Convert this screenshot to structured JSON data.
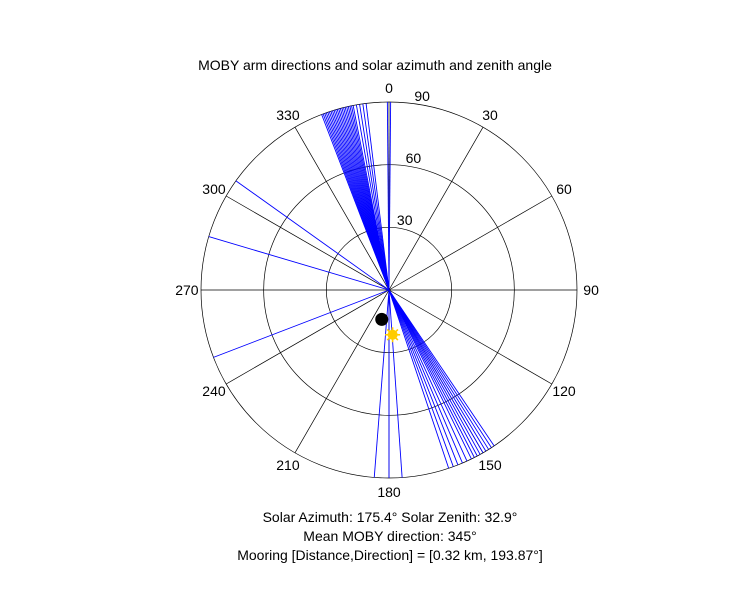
{
  "chart_data": {
    "type": "polar",
    "title": "MOBY arm directions and solar azimuth and zenith angle",
    "theta_ticks": [
      "0",
      "30",
      "60",
      "90",
      "120",
      "150",
      "180",
      "210",
      "240",
      "270",
      "300",
      "330"
    ],
    "theta_tick_values": [
      0,
      30,
      60,
      90,
      120,
      150,
      180,
      210,
      240,
      270,
      300,
      330
    ],
    "r_ticks": [
      "30",
      "60",
      "90"
    ],
    "r_tick_values": [
      30,
      60,
      90
    ],
    "r_max": 90,
    "theta_zero": "top",
    "theta_direction": "clockwise",
    "arm_directions_deg": [
      339.0,
      339.5,
      340.0,
      340.5,
      341.0,
      341.5,
      342.0,
      342.5,
      343.0,
      343.5,
      344.0,
      344.5,
      345.0,
      345.5,
      346.0,
      346.5,
      347.0,
      347.5,
      348.0,
      348.5,
      349.0,
      350.0,
      351.0,
      352.0,
      353.0,
      359.5,
      0.5,
      305.5,
      286.5,
      249.0,
      184.5,
      176.0,
      180.0,
      146.0,
      147.0,
      148.0,
      149.0,
      150.0,
      151.0,
      152.0,
      153.0,
      154.0,
      155.5,
      157.0,
      158.5,
      160.0,
      161.5
    ],
    "arm_color": "#0000ff",
    "mooring_point": {
      "theta": 193.87,
      "r": 14.5,
      "color": "#000000"
    },
    "sun_point": {
      "theta": 175.4,
      "r": 21.5,
      "color": "#ffcc00"
    }
  },
  "captions": {
    "line1": "Solar Azimuth: 175.4°    Solar Zenith: 32.9°",
    "line2": "Mean MOBY direction: 345°",
    "line3": "Mooring [Distance,Direction] = [0.32 km, 193.87°]"
  }
}
